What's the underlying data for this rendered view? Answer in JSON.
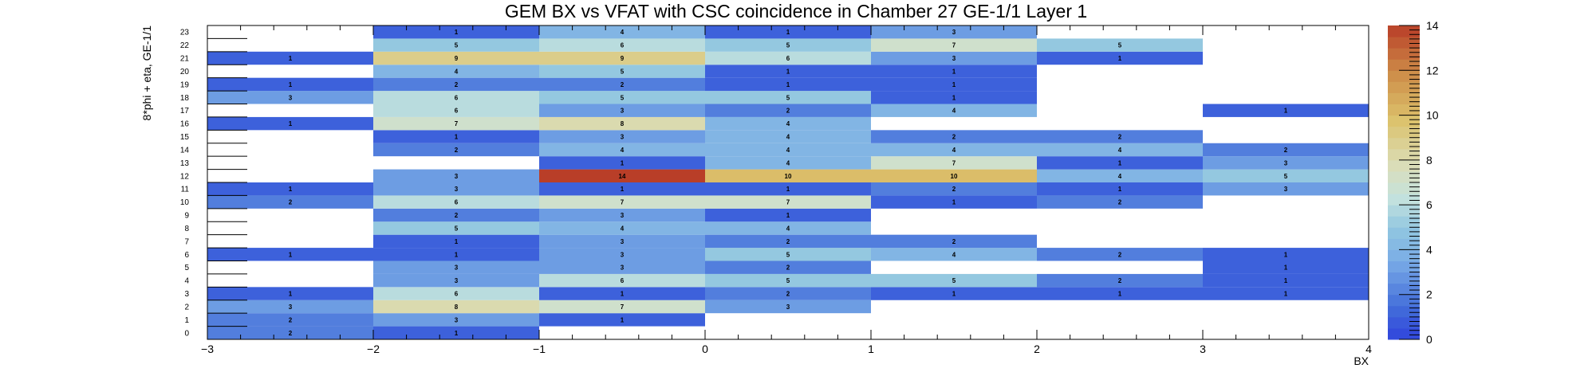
{
  "chart_data": {
    "type": "heatmap",
    "title": "GEM BX vs VFAT with CSC coincidence in Chamber 27 GE-1/1 Layer 1",
    "xlabel": "BX",
    "ylabel": "8*phi + eta, GE-1/1",
    "xlim": [
      -3,
      4
    ],
    "ylim": [
      0,
      24
    ],
    "x_bin_edges": [
      -3,
      -2,
      -1,
      0,
      1,
      2,
      3,
      4
    ],
    "x_bin_centers": [
      -2.5,
      -1.5,
      -0.5,
      0.5,
      1.5,
      2.5,
      3.5
    ],
    "x_tick_labels": [
      "−3",
      "−2",
      "−1",
      "0",
      "1",
      "2",
      "3",
      "4"
    ],
    "y_tick_labels": [
      "0",
      "1",
      "2",
      "3",
      "4",
      "5",
      "6",
      "7",
      "8",
      "9",
      "10",
      "11",
      "12",
      "13",
      "14",
      "15",
      "16",
      "17",
      "18",
      "19",
      "20",
      "21",
      "22",
      "23"
    ],
    "colorbar": {
      "min": 0,
      "max": 14,
      "tick_labels": [
        "0",
        "2",
        "4",
        "6",
        "8",
        "10",
        "12",
        "14"
      ]
    },
    "cells": [
      {
        "x": -2.5,
        "y": 0,
        "value": 2
      },
      {
        "x": -1.5,
        "y": 0,
        "value": 1
      },
      {
        "x": -2.5,
        "y": 1,
        "value": 2
      },
      {
        "x": -1.5,
        "y": 1,
        "value": 3
      },
      {
        "x": -0.5,
        "y": 1,
        "value": 1
      },
      {
        "x": -2.5,
        "y": 2,
        "value": 3
      },
      {
        "x": -1.5,
        "y": 2,
        "value": 8
      },
      {
        "x": -0.5,
        "y": 2,
        "value": 7
      },
      {
        "x": 0.5,
        "y": 2,
        "value": 3
      },
      {
        "x": -2.5,
        "y": 3,
        "value": 1
      },
      {
        "x": -1.5,
        "y": 3,
        "value": 6
      },
      {
        "x": -0.5,
        "y": 3,
        "value": 1
      },
      {
        "x": 0.5,
        "y": 3,
        "value": 2
      },
      {
        "x": 1.5,
        "y": 3,
        "value": 1
      },
      {
        "x": 2.5,
        "y": 3,
        "value": 1
      },
      {
        "x": 3.5,
        "y": 3,
        "value": 1
      },
      {
        "x": -1.5,
        "y": 4,
        "value": 3
      },
      {
        "x": -0.5,
        "y": 4,
        "value": 6
      },
      {
        "x": 0.5,
        "y": 4,
        "value": 5
      },
      {
        "x": 1.5,
        "y": 4,
        "value": 5
      },
      {
        "x": 2.5,
        "y": 4,
        "value": 2
      },
      {
        "x": 3.5,
        "y": 4,
        "value": 1
      },
      {
        "x": -1.5,
        "y": 5,
        "value": 3
      },
      {
        "x": -0.5,
        "y": 5,
        "value": 3
      },
      {
        "x": 0.5,
        "y": 5,
        "value": 2
      },
      {
        "x": 3.5,
        "y": 5,
        "value": 1
      },
      {
        "x": -2.5,
        "y": 6,
        "value": 1
      },
      {
        "x": -1.5,
        "y": 6,
        "value": 1
      },
      {
        "x": -0.5,
        "y": 6,
        "value": 3
      },
      {
        "x": 0.5,
        "y": 6,
        "value": 5
      },
      {
        "x": 1.5,
        "y": 6,
        "value": 4
      },
      {
        "x": 2.5,
        "y": 6,
        "value": 2
      },
      {
        "x": 3.5,
        "y": 6,
        "value": 1
      },
      {
        "x": -1.5,
        "y": 7,
        "value": 1
      },
      {
        "x": -0.5,
        "y": 7,
        "value": 3
      },
      {
        "x": 0.5,
        "y": 7,
        "value": 2
      },
      {
        "x": 1.5,
        "y": 7,
        "value": 2
      },
      {
        "x": -1.5,
        "y": 8,
        "value": 5
      },
      {
        "x": -0.5,
        "y": 8,
        "value": 4
      },
      {
        "x": 0.5,
        "y": 8,
        "value": 4
      },
      {
        "x": -1.5,
        "y": 9,
        "value": 2
      },
      {
        "x": -0.5,
        "y": 9,
        "value": 3
      },
      {
        "x": 0.5,
        "y": 9,
        "value": 1
      },
      {
        "x": -2.5,
        "y": 10,
        "value": 2
      },
      {
        "x": -1.5,
        "y": 10,
        "value": 6
      },
      {
        "x": -0.5,
        "y": 10,
        "value": 7
      },
      {
        "x": 0.5,
        "y": 10,
        "value": 7
      },
      {
        "x": 1.5,
        "y": 10,
        "value": 1
      },
      {
        "x": 2.5,
        "y": 10,
        "value": 2
      },
      {
        "x": -2.5,
        "y": 11,
        "value": 1
      },
      {
        "x": -1.5,
        "y": 11,
        "value": 3
      },
      {
        "x": -0.5,
        "y": 11,
        "value": 1
      },
      {
        "x": 0.5,
        "y": 11,
        "value": 1
      },
      {
        "x": 1.5,
        "y": 11,
        "value": 2
      },
      {
        "x": 2.5,
        "y": 11,
        "value": 1
      },
      {
        "x": 3.5,
        "y": 11,
        "value": 3
      },
      {
        "x": -1.5,
        "y": 12,
        "value": 3
      },
      {
        "x": -0.5,
        "y": 12,
        "value": 14
      },
      {
        "x": 0.5,
        "y": 12,
        "value": 10
      },
      {
        "x": 1.5,
        "y": 12,
        "value": 10
      },
      {
        "x": 2.5,
        "y": 12,
        "value": 4
      },
      {
        "x": 3.5,
        "y": 12,
        "value": 5
      },
      {
        "x": -0.5,
        "y": 13,
        "value": 1
      },
      {
        "x": 0.5,
        "y": 13,
        "value": 4
      },
      {
        "x": 1.5,
        "y": 13,
        "value": 7
      },
      {
        "x": 2.5,
        "y": 13,
        "value": 1
      },
      {
        "x": 3.5,
        "y": 13,
        "value": 3
      },
      {
        "x": -1.5,
        "y": 14,
        "value": 2
      },
      {
        "x": -0.5,
        "y": 14,
        "value": 4
      },
      {
        "x": 0.5,
        "y": 14,
        "value": 4
      },
      {
        "x": 1.5,
        "y": 14,
        "value": 4
      },
      {
        "x": 2.5,
        "y": 14,
        "value": 4
      },
      {
        "x": 3.5,
        "y": 14,
        "value": 2
      },
      {
        "x": -1.5,
        "y": 15,
        "value": 1
      },
      {
        "x": -0.5,
        "y": 15,
        "value": 3
      },
      {
        "x": 0.5,
        "y": 15,
        "value": 4
      },
      {
        "x": 1.5,
        "y": 15,
        "value": 2
      },
      {
        "x": 2.5,
        "y": 15,
        "value": 2
      },
      {
        "x": -2.5,
        "y": 16,
        "value": 1
      },
      {
        "x": -1.5,
        "y": 16,
        "value": 7
      },
      {
        "x": -0.5,
        "y": 16,
        "value": 8
      },
      {
        "x": 0.5,
        "y": 16,
        "value": 4
      },
      {
        "x": -1.5,
        "y": 17,
        "value": 6
      },
      {
        "x": -0.5,
        "y": 17,
        "value": 3
      },
      {
        "x": 0.5,
        "y": 17,
        "value": 2
      },
      {
        "x": 1.5,
        "y": 17,
        "value": 4
      },
      {
        "x": 3.5,
        "y": 17,
        "value": 1
      },
      {
        "x": -2.5,
        "y": 18,
        "value": 3
      },
      {
        "x": -1.5,
        "y": 18,
        "value": 6
      },
      {
        "x": -0.5,
        "y": 18,
        "value": 5
      },
      {
        "x": 0.5,
        "y": 18,
        "value": 5
      },
      {
        "x": 1.5,
        "y": 18,
        "value": 1
      },
      {
        "x": -2.5,
        "y": 19,
        "value": 1
      },
      {
        "x": -1.5,
        "y": 19,
        "value": 2
      },
      {
        "x": -0.5,
        "y": 19,
        "value": 2
      },
      {
        "x": 0.5,
        "y": 19,
        "value": 1
      },
      {
        "x": 1.5,
        "y": 19,
        "value": 1
      },
      {
        "x": -1.5,
        "y": 20,
        "value": 4
      },
      {
        "x": -0.5,
        "y": 20,
        "value": 5
      },
      {
        "x": 0.5,
        "y": 20,
        "value": 1
      },
      {
        "x": 1.5,
        "y": 20,
        "value": 1
      },
      {
        "x": -2.5,
        "y": 21,
        "value": 1
      },
      {
        "x": -1.5,
        "y": 21,
        "value": 9
      },
      {
        "x": -0.5,
        "y": 21,
        "value": 9
      },
      {
        "x": 0.5,
        "y": 21,
        "value": 6
      },
      {
        "x": 1.5,
        "y": 21,
        "value": 3
      },
      {
        "x": 2.5,
        "y": 21,
        "value": 1
      },
      {
        "x": -1.5,
        "y": 22,
        "value": 5
      },
      {
        "x": -0.5,
        "y": 22,
        "value": 6
      },
      {
        "x": 0.5,
        "y": 22,
        "value": 5
      },
      {
        "x": 1.5,
        "y": 22,
        "value": 7
      },
      {
        "x": 2.5,
        "y": 22,
        "value": 5
      },
      {
        "x": -1.5,
        "y": 23,
        "value": 1
      },
      {
        "x": -0.5,
        "y": 23,
        "value": 4
      },
      {
        "x": 0.5,
        "y": 23,
        "value": 1
      },
      {
        "x": 1.5,
        "y": 23,
        "value": 3
      }
    ],
    "grid": false,
    "legend": "none"
  }
}
